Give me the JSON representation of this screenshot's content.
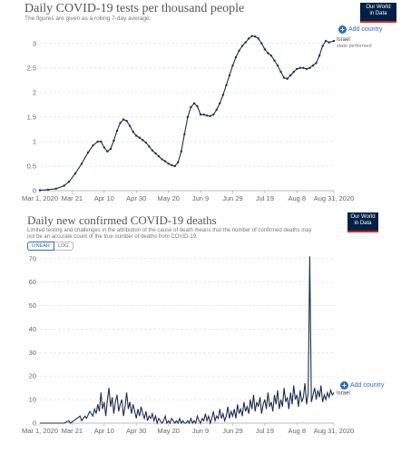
{
  "source_logo": {
    "line1": "Our World",
    "line2": "in Data"
  },
  "add_country_label": "Add country",
  "chart1": {
    "title": "Daily COVID-19 tests per thousand people",
    "subtitle": "The figures are given as a rolling 7-day average."
  },
  "chart2": {
    "title": "Daily new confirmed COVID-19 deaths",
    "subtitle_line1": "Limited testing and challenges in the attribution of the cause of death means that the number of confirmed deaths may",
    "subtitle_line2": "not be an accurate count of the true number of deaths from COVID-19.",
    "scale_linear": "LINEAR",
    "scale_log": "LOG",
    "add_country_label": "Add country"
  },
  "chart_data": [
    {
      "type": "line",
      "title": "Daily COVID-19 tests per thousand people",
      "subtitle": "The figures are given as a rolling 7-day average.",
      "x_tick_labels": [
        "Mar 1, 2020",
        "Mar 21",
        "Apr 10",
        "Apr 30",
        "May 20",
        "Jun 9",
        "Jun 29",
        "Jul 19",
        "Aug 8",
        "Aug 31, 2020"
      ],
      "x_tick_days": [
        0,
        20,
        40,
        60,
        80,
        100,
        120,
        140,
        160,
        183
      ],
      "y_ticks": [
        0,
        0.5,
        1,
        1.5,
        2,
        2.5,
        3
      ],
      "y_tick_labels": [
        "0",
        "0.5",
        "1",
        "1.5",
        "2",
        "2.5",
        "3"
      ],
      "ylim": [
        0,
        3.2
      ],
      "series": [
        {
          "name": "Israel",
          "note": "state performed",
          "color": "#1f2d4d",
          "x": [
            0,
            5,
            10,
            15,
            18,
            22,
            26,
            30,
            33,
            36,
            38,
            40,
            42,
            44,
            46,
            48,
            50,
            52,
            54,
            56,
            58,
            60,
            62,
            64,
            66,
            68,
            70,
            72,
            74,
            76,
            78,
            80,
            82,
            84,
            86,
            88,
            90,
            92,
            94,
            96,
            98,
            100,
            102,
            104,
            106,
            108,
            110,
            112,
            114,
            116,
            118,
            120,
            122,
            124,
            126,
            128,
            130,
            132,
            134,
            136,
            138,
            140,
            142,
            144,
            146,
            148,
            150,
            152,
            154,
            156,
            158,
            160,
            162,
            164,
            166,
            168,
            170,
            172,
            174,
            176,
            178,
            180,
            183
          ],
          "y": [
            0.01,
            0.02,
            0.04,
            0.1,
            0.18,
            0.35,
            0.55,
            0.78,
            0.92,
            1.0,
            1.0,
            0.88,
            0.8,
            0.85,
            1.02,
            1.22,
            1.38,
            1.45,
            1.42,
            1.32,
            1.2,
            1.12,
            1.08,
            1.03,
            0.98,
            0.9,
            0.82,
            0.76,
            0.7,
            0.64,
            0.6,
            0.55,
            0.52,
            0.5,
            0.58,
            0.8,
            1.15,
            1.5,
            1.7,
            1.78,
            1.72,
            1.55,
            1.55,
            1.53,
            1.52,
            1.55,
            1.65,
            1.78,
            1.95,
            2.15,
            2.35,
            2.55,
            2.72,
            2.85,
            2.95,
            3.02,
            3.1,
            3.15,
            3.14,
            3.1,
            3.0,
            2.88,
            2.8,
            2.75,
            2.65,
            2.55,
            2.42,
            2.3,
            2.28,
            2.35,
            2.42,
            2.48,
            2.5,
            2.5,
            2.48,
            2.5,
            2.55,
            2.6,
            2.75,
            2.95,
            3.05,
            3.02,
            3.05
          ]
        }
      ]
    },
    {
      "type": "line",
      "title": "Daily new confirmed COVID-19 deaths",
      "x_tick_labels": [
        "Mar 1, 2020",
        "Mar 21",
        "Apr 10",
        "Apr 30",
        "May 20",
        "Jun 9",
        "Jun 29",
        "Jul 19",
        "Aug 8",
        "Aug 31, 2020"
      ],
      "x_tick_days": [
        0,
        20,
        40,
        60,
        80,
        100,
        120,
        140,
        160,
        183
      ],
      "y_ticks": [
        0,
        10,
        20,
        30,
        40,
        50,
        60,
        70
      ],
      "y_tick_labels": [
        "0",
        "10",
        "20",
        "30",
        "40",
        "50",
        "60",
        "70"
      ],
      "ylim": [
        0,
        73
      ],
      "scale": "linear",
      "series": [
        {
          "name": "Israel",
          "color": "#1f2d4d",
          "x": [
            0,
            3,
            6,
            9,
            12,
            15,
            18,
            19,
            21,
            23,
            25,
            26,
            28,
            29,
            31,
            33,
            34,
            35,
            36,
            37,
            38,
            39,
            40,
            41,
            42,
            43,
            44,
            45,
            46,
            47,
            48,
            49,
            50,
            51,
            52,
            53,
            54,
            55,
            56,
            57,
            58,
            59,
            60,
            61,
            62,
            63,
            64,
            65,
            66,
            67,
            68,
            69,
            70,
            71,
            72,
            73,
            74,
            75,
            76,
            77,
            78,
            79,
            80,
            81,
            82,
            83,
            84,
            85,
            86,
            87,
            88,
            89,
            90,
            91,
            92,
            93,
            94,
            95,
            96,
            97,
            98,
            99,
            100,
            101,
            102,
            103,
            104,
            105,
            106,
            107,
            108,
            109,
            110,
            111,
            112,
            113,
            114,
            115,
            116,
            117,
            118,
            119,
            120,
            121,
            122,
            123,
            124,
            125,
            126,
            127,
            128,
            129,
            130,
            131,
            132,
            133,
            134,
            135,
            136,
            137,
            138,
            139,
            140,
            141,
            142,
            143,
            144,
            145,
            146,
            147,
            148,
            149,
            150,
            151,
            152,
            153,
            154,
            155,
            156,
            157,
            158,
            159,
            160,
            161,
            162,
            163,
            164,
            165,
            166,
            167,
            168,
            169,
            170,
            171,
            172,
            173,
            174,
            175,
            176,
            177,
            178,
            179,
            180,
            181,
            182,
            183
          ],
          "y": [
            0,
            0,
            0,
            0,
            0,
            0,
            1,
            0,
            1,
            2,
            3,
            1,
            3,
            2,
            5,
            3,
            6,
            4,
            8,
            5,
            13,
            6,
            9,
            3,
            10,
            15,
            7,
            11,
            4,
            9,
            12,
            5,
            8,
            10,
            3,
            7,
            13,
            6,
            9,
            4,
            8,
            5,
            2,
            6,
            3,
            7,
            4,
            2,
            5,
            1,
            3,
            2,
            4,
            1,
            3,
            0,
            2,
            1,
            0,
            1,
            3,
            0,
            1,
            0,
            2,
            1,
            0,
            1,
            0,
            2,
            0,
            1,
            0,
            0,
            1,
            0,
            2,
            0,
            1,
            0,
            3,
            1,
            0,
            2,
            1,
            4,
            1,
            3,
            0,
            2,
            5,
            1,
            3,
            2,
            6,
            2,
            4,
            1,
            3,
            7,
            2,
            5,
            3,
            6,
            2,
            8,
            4,
            6,
            3,
            9,
            5,
            7,
            4,
            10,
            6,
            12,
            5,
            9,
            7,
            11,
            4,
            8,
            10,
            6,
            13,
            7,
            9,
            5,
            12,
            8,
            14,
            6,
            10,
            7,
            15,
            9,
            11,
            6,
            13,
            8,
            16,
            10,
            12,
            7,
            14,
            9,
            11,
            17,
            8,
            13,
            71,
            9,
            12,
            15,
            10,
            14,
            11,
            16,
            9,
            12,
            10,
            13,
            11,
            14,
            12,
            13
          ]
        }
      ]
    }
  ]
}
